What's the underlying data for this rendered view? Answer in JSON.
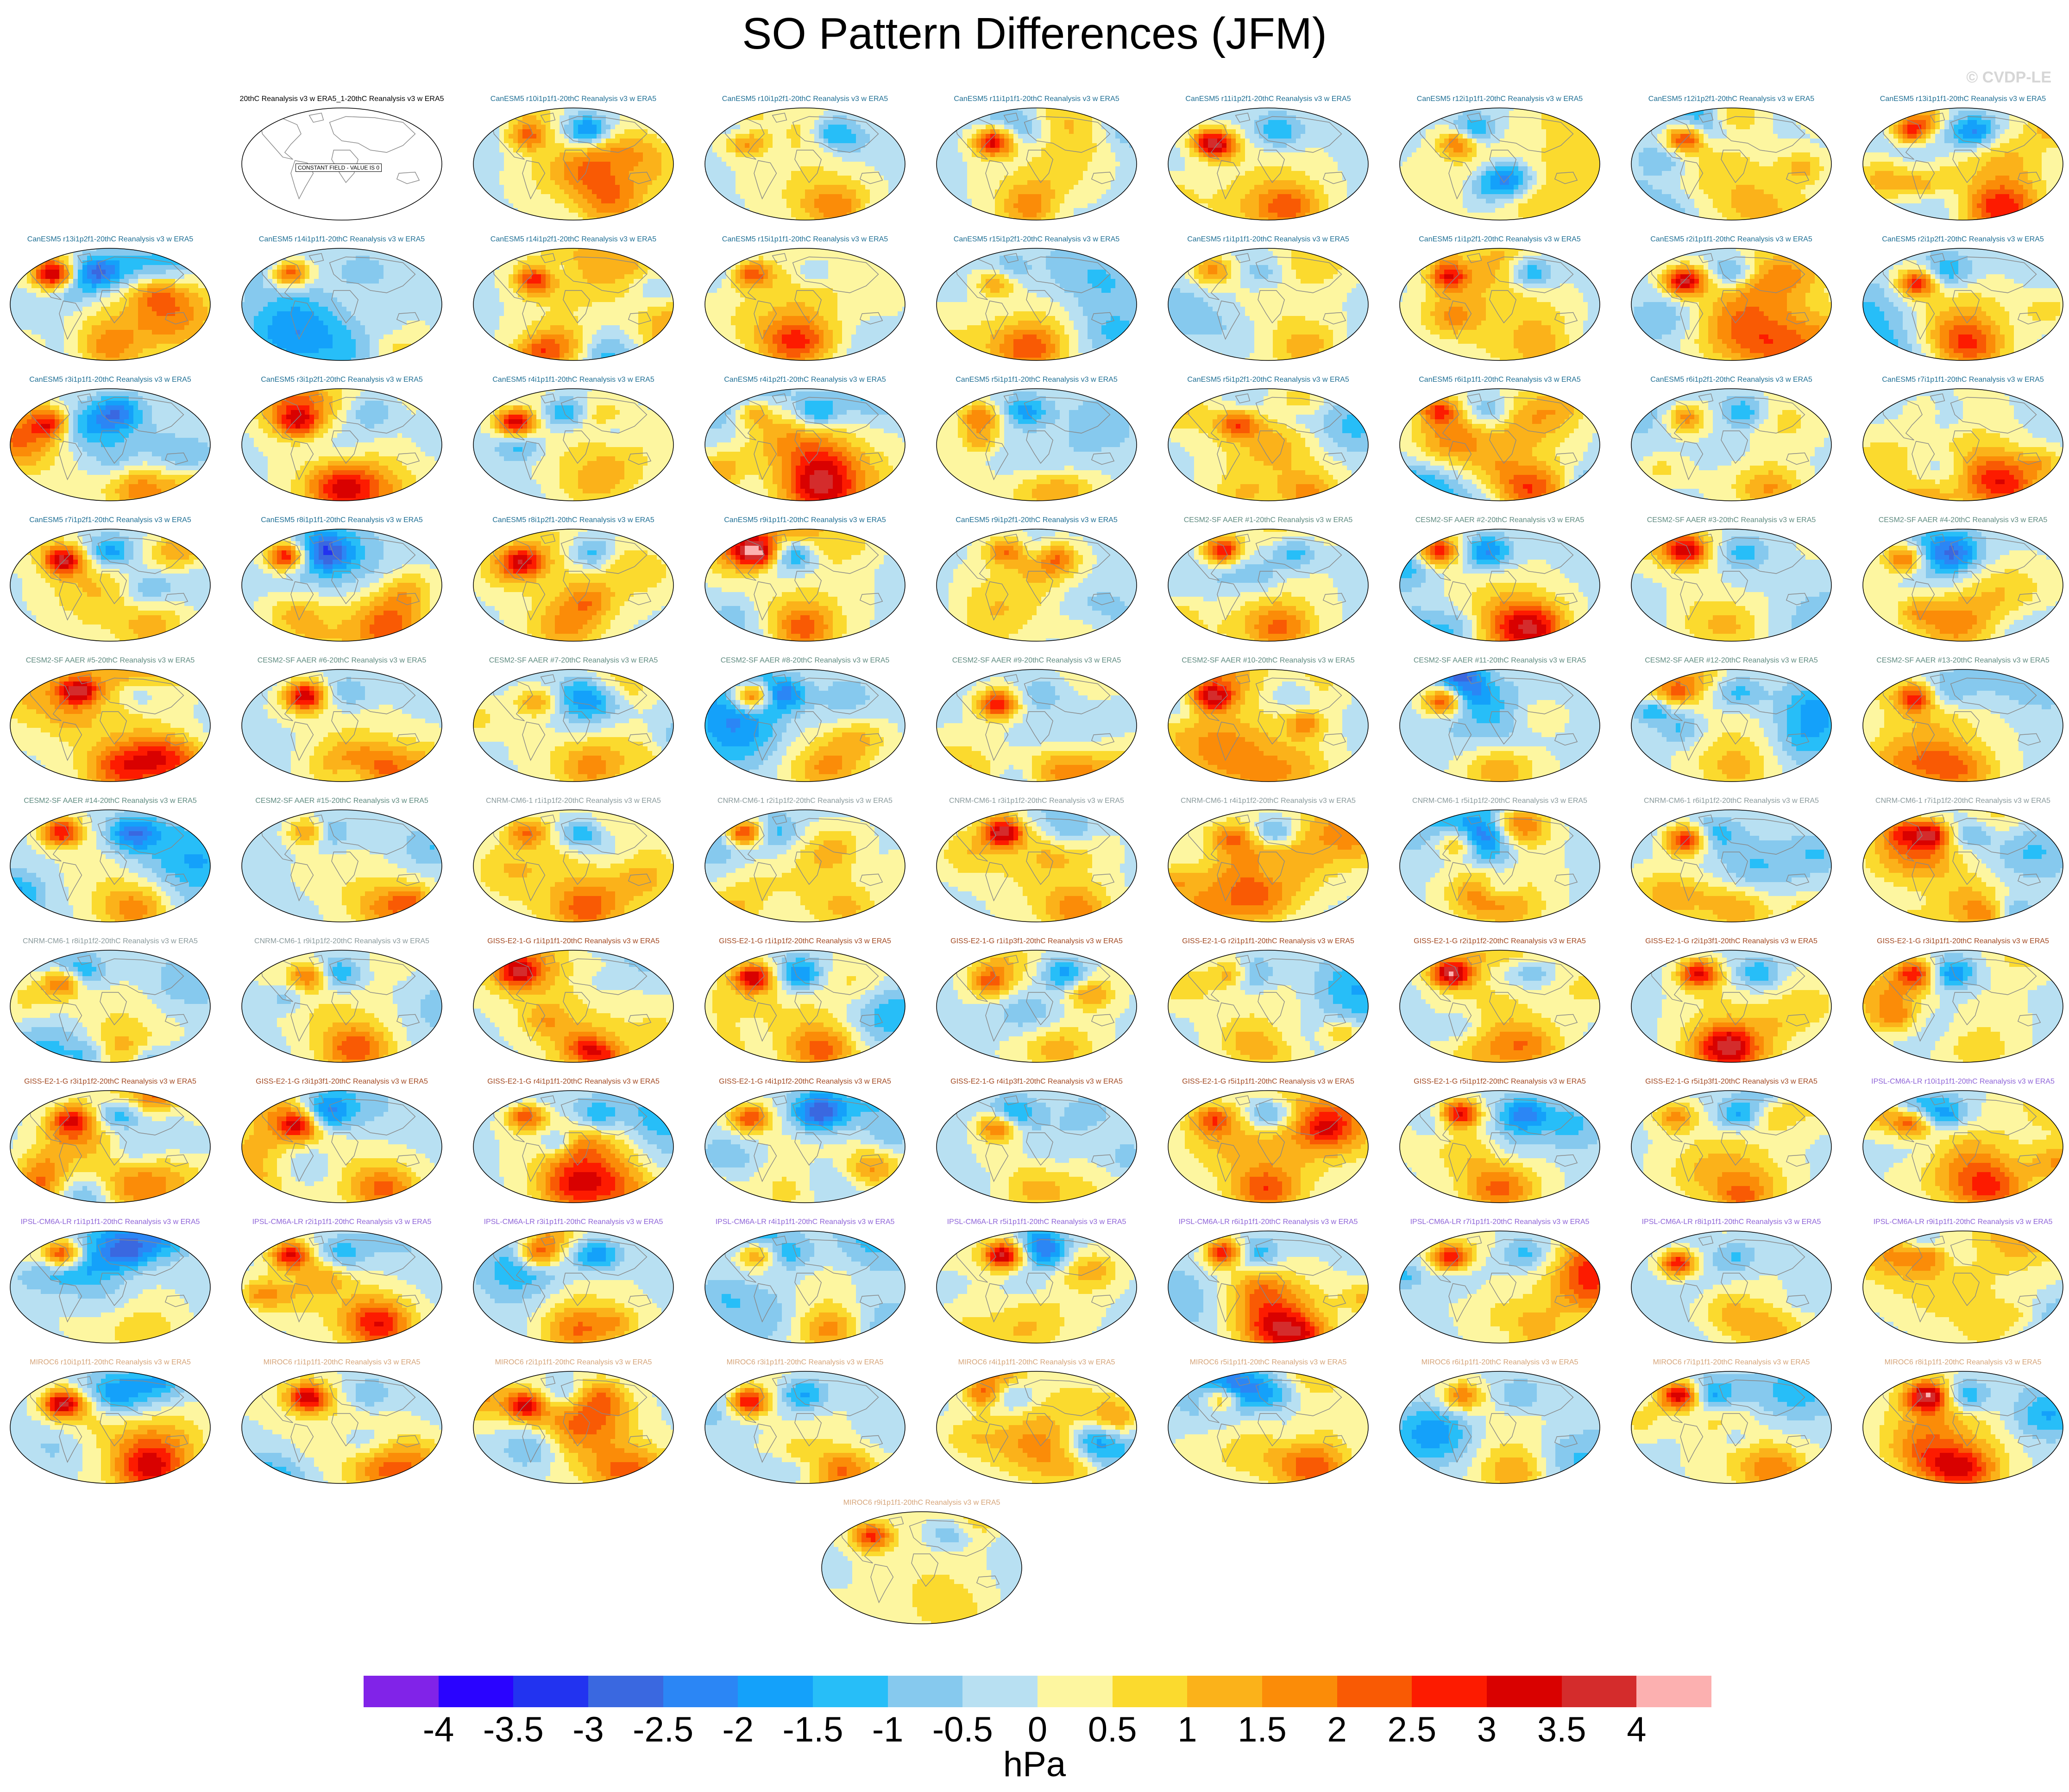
{
  "title": "SO Pattern Differences (JFM)",
  "watermark": "© CVDP-LE",
  "chart_data": {
    "type": "heatmap",
    "title": "SO Pattern Differences (JFM)",
    "map_projection": "robinson",
    "colorbar": {
      "label": "hPa",
      "levels": [
        -4,
        -3.5,
        -3,
        -2.5,
        -2,
        -1.5,
        -1,
        -0.5,
        0,
        0.5,
        1,
        1.5,
        2,
        2.5,
        3,
        3.5,
        4
      ],
      "tick_labels": [
        "-4",
        "-3.5",
        "-3",
        "-2.5",
        "-2",
        "-1.5",
        "-1",
        "-0.5",
        "0",
        "0.5",
        "1",
        "1.5",
        "2",
        "2.5",
        "3",
        "3.5",
        "4"
      ],
      "colors": [
        "#8123e8",
        "#2a03ff",
        "#2233f0",
        "#3a68e0",
        "#2b86f5",
        "#14a1fa",
        "#27bef8",
        "#86c9ee",
        "#b8e0f2",
        "#fdf6a0",
        "#fbda2e",
        "#fbb21a",
        "#fb8c08",
        "#f95a04",
        "#fd1b00",
        "#d90100",
        "#d42c2c",
        "#fcb0b0"
      ]
    },
    "reference_panel": {
      "name": "20thC Reanalysis v3 w ERA5_1-20thC Reanalysis v3 w ERA5",
      "annotation": "CONSTANT FIELD - VALUE IS 0"
    },
    "panels": [
      {
        "name": "CanESM5 r10i1p1f1-20thC Reanalysis v3 w ERA5",
        "group": "CanESM5"
      },
      {
        "name": "CanESM5 r10i1p2f1-20thC Reanalysis v3 w ERA5",
        "group": "CanESM5"
      },
      {
        "name": "CanESM5 r11i1p1f1-20thC Reanalysis v3 w ERA5",
        "group": "CanESM5"
      },
      {
        "name": "CanESM5 r11i1p2f1-20thC Reanalysis v3 w ERA5",
        "group": "CanESM5"
      },
      {
        "name": "CanESM5 r12i1p1f1-20thC Reanalysis v3 w ERA5",
        "group": "CanESM5"
      },
      {
        "name": "CanESM5 r12i1p2f1-20thC Reanalysis v3 w ERA5",
        "group": "CanESM5"
      },
      {
        "name": "CanESM5 r13i1p1f1-20thC Reanalysis v3 w ERA5",
        "group": "CanESM5"
      },
      {
        "name": "CanESM5 r13i1p2f1-20thC Reanalysis v3 w ERA5",
        "group": "CanESM5"
      },
      {
        "name": "CanESM5 r14i1p1f1-20thC Reanalysis v3 w ERA5",
        "group": "CanESM5"
      },
      {
        "name": "CanESM5 r14i1p2f1-20thC Reanalysis v3 w ERA5",
        "group": "CanESM5"
      },
      {
        "name": "CanESM5 r15i1p1f1-20thC Reanalysis v3 w ERA5",
        "group": "CanESM5"
      },
      {
        "name": "CanESM5 r15i1p2f1-20thC Reanalysis v3 w ERA5",
        "group": "CanESM5"
      },
      {
        "name": "CanESM5 r1i1p1f1-20thC Reanalysis v3 w ERA5",
        "group": "CanESM5"
      },
      {
        "name": "CanESM5 r1i1p2f1-20thC Reanalysis v3 w ERA5",
        "group": "CanESM5"
      },
      {
        "name": "CanESM5 r2i1p1f1-20thC Reanalysis v3 w ERA5",
        "group": "CanESM5"
      },
      {
        "name": "CanESM5 r2i1p2f1-20thC Reanalysis v3 w ERA5",
        "group": "CanESM5"
      },
      {
        "name": "CanESM5 r3i1p1f1-20thC Reanalysis v3 w ERA5",
        "group": "CanESM5"
      },
      {
        "name": "CanESM5 r3i1p2f1-20thC Reanalysis v3 w ERA5",
        "group": "CanESM5"
      },
      {
        "name": "CanESM5 r4i1p1f1-20thC Reanalysis v3 w ERA5",
        "group": "CanESM5"
      },
      {
        "name": "CanESM5 r4i1p2f1-20thC Reanalysis v3 w ERA5",
        "group": "CanESM5"
      },
      {
        "name": "CanESM5 r5i1p1f1-20thC Reanalysis v3 w ERA5",
        "group": "CanESM5"
      },
      {
        "name": "CanESM5 r5i1p2f1-20thC Reanalysis v3 w ERA5",
        "group": "CanESM5"
      },
      {
        "name": "CanESM5 r6i1p1f1-20thC Reanalysis v3 w ERA5",
        "group": "CanESM5"
      },
      {
        "name": "CanESM5 r6i1p2f1-20thC Reanalysis v3 w ERA5",
        "group": "CanESM5"
      },
      {
        "name": "CanESM5 r7i1p1f1-20thC Reanalysis v3 w ERA5",
        "group": "CanESM5"
      },
      {
        "name": "CanESM5 r7i1p2f1-20thC Reanalysis v3 w ERA5",
        "group": "CanESM5"
      },
      {
        "name": "CanESM5 r8i1p1f1-20thC Reanalysis v3 w ERA5",
        "group": "CanESM5"
      },
      {
        "name": "CanESM5 r8i1p2f1-20thC Reanalysis v3 w ERA5",
        "group": "CanESM5"
      },
      {
        "name": "CanESM5 r9i1p1f1-20thC Reanalysis v3 w ERA5",
        "group": "CanESM5"
      },
      {
        "name": "CanESM5 r9i1p2f1-20thC Reanalysis v3 w ERA5",
        "group": "CanESM5"
      },
      {
        "name": "CESM2-SF AAER #1-20thC Reanalysis v3 w ERA5",
        "group": "CESM2-SF AAER"
      },
      {
        "name": "CESM2-SF AAER #2-20thC Reanalysis v3 w ERA5",
        "group": "CESM2-SF AAER"
      },
      {
        "name": "CESM2-SF AAER #3-20thC Reanalysis v3 w ERA5",
        "group": "CESM2-SF AAER"
      },
      {
        "name": "CESM2-SF AAER #4-20thC Reanalysis v3 w ERA5",
        "group": "CESM2-SF AAER"
      },
      {
        "name": "CESM2-SF AAER #5-20thC Reanalysis v3 w ERA5",
        "group": "CESM2-SF AAER"
      },
      {
        "name": "CESM2-SF AAER #6-20thC Reanalysis v3 w ERA5",
        "group": "CESM2-SF AAER"
      },
      {
        "name": "CESM2-SF AAER #7-20thC Reanalysis v3 w ERA5",
        "group": "CESM2-SF AAER"
      },
      {
        "name": "CESM2-SF AAER #8-20thC Reanalysis v3 w ERA5",
        "group": "CESM2-SF AAER"
      },
      {
        "name": "CESM2-SF AAER #9-20thC Reanalysis v3 w ERA5",
        "group": "CESM2-SF AAER"
      },
      {
        "name": "CESM2-SF AAER #10-20thC Reanalysis v3 w ERA5",
        "group": "CESM2-SF AAER"
      },
      {
        "name": "CESM2-SF AAER #11-20thC Reanalysis v3 w ERA5",
        "group": "CESM2-SF AAER"
      },
      {
        "name": "CESM2-SF AAER #12-20thC Reanalysis v3 w ERA5",
        "group": "CESM2-SF AAER"
      },
      {
        "name": "CESM2-SF AAER #13-20thC Reanalysis v3 w ERA5",
        "group": "CESM2-SF AAER"
      },
      {
        "name": "CESM2-SF AAER #14-20thC Reanalysis v3 w ERA5",
        "group": "CESM2-SF AAER"
      },
      {
        "name": "CESM2-SF AAER #15-20thC Reanalysis v3 w ERA5",
        "group": "CESM2-SF AAER"
      },
      {
        "name": "CNRM-CM6-1 r1i1p1f2-20thC Reanalysis v3 w ERA5",
        "group": "CNRM-CM6-1"
      },
      {
        "name": "CNRM-CM6-1 r2i1p1f2-20thC Reanalysis v3 w ERA5",
        "group": "CNRM-CM6-1"
      },
      {
        "name": "CNRM-CM6-1 r3i1p1f2-20thC Reanalysis v3 w ERA5",
        "group": "CNRM-CM6-1"
      },
      {
        "name": "CNRM-CM6-1 r4i1p1f2-20thC Reanalysis v3 w ERA5",
        "group": "CNRM-CM6-1"
      },
      {
        "name": "CNRM-CM6-1 r5i1p1f2-20thC Reanalysis v3 w ERA5",
        "group": "CNRM-CM6-1"
      },
      {
        "name": "CNRM-CM6-1 r6i1p1f2-20thC Reanalysis v3 w ERA5",
        "group": "CNRM-CM6-1"
      },
      {
        "name": "CNRM-CM6-1 r7i1p1f2-20thC Reanalysis v3 w ERA5",
        "group": "CNRM-CM6-1"
      },
      {
        "name": "CNRM-CM6-1 r8i1p1f2-20thC Reanalysis v3 w ERA5",
        "group": "CNRM-CM6-1"
      },
      {
        "name": "CNRM-CM6-1 r9i1p1f2-20thC Reanalysis v3 w ERA5",
        "group": "CNRM-CM6-1"
      },
      {
        "name": "GISS-E2-1-G r1i1p1f1-20thC Reanalysis v3 w ERA5",
        "group": "GISS-E2-1-G"
      },
      {
        "name": "GISS-E2-1-G r1i1p1f2-20thC Reanalysis v3 w ERA5",
        "group": "GISS-E2-1-G"
      },
      {
        "name": "GISS-E2-1-G r1i1p3f1-20thC Reanalysis v3 w ERA5",
        "group": "GISS-E2-1-G"
      },
      {
        "name": "GISS-E2-1-G r2i1p1f1-20thC Reanalysis v3 w ERA5",
        "group": "GISS-E2-1-G"
      },
      {
        "name": "GISS-E2-1-G r2i1p1f2-20thC Reanalysis v3 w ERA5",
        "group": "GISS-E2-1-G"
      },
      {
        "name": "GISS-E2-1-G r2i1p3f1-20thC Reanalysis v3 w ERA5",
        "group": "GISS-E2-1-G"
      },
      {
        "name": "GISS-E2-1-G r3i1p1f1-20thC Reanalysis v3 w ERA5",
        "group": "GISS-E2-1-G"
      },
      {
        "name": "GISS-E2-1-G r3i1p1f2-20thC Reanalysis v3 w ERA5",
        "group": "GISS-E2-1-G"
      },
      {
        "name": "GISS-E2-1-G r3i1p3f1-20thC Reanalysis v3 w ERA5",
        "group": "GISS-E2-1-G"
      },
      {
        "name": "GISS-E2-1-G r4i1p1f1-20thC Reanalysis v3 w ERA5",
        "group": "GISS-E2-1-G"
      },
      {
        "name": "GISS-E2-1-G r4i1p1f2-20thC Reanalysis v3 w ERA5",
        "group": "GISS-E2-1-G"
      },
      {
        "name": "GISS-E2-1-G r4i1p3f1-20thC Reanalysis v3 w ERA5",
        "group": "GISS-E2-1-G"
      },
      {
        "name": "GISS-E2-1-G r5i1p1f1-20thC Reanalysis v3 w ERA5",
        "group": "GISS-E2-1-G"
      },
      {
        "name": "GISS-E2-1-G r5i1p1f2-20thC Reanalysis v3 w ERA5",
        "group": "GISS-E2-1-G"
      },
      {
        "name": "GISS-E2-1-G r5i1p3f1-20thC Reanalysis v3 w ERA5",
        "group": "GISS-E2-1-G"
      },
      {
        "name": "IPSL-CM6A-LR r10i1p1f1-20thC Reanalysis v3 w ERA5",
        "group": "IPSL-CM6A-LR"
      },
      {
        "name": "IPSL-CM6A-LR r1i1p1f1-20thC Reanalysis v3 w ERA5",
        "group": "IPSL-CM6A-LR"
      },
      {
        "name": "IPSL-CM6A-LR r2i1p1f1-20thC Reanalysis v3 w ERA5",
        "group": "IPSL-CM6A-LR"
      },
      {
        "name": "IPSL-CM6A-LR r3i1p1f1-20thC Reanalysis v3 w ERA5",
        "group": "IPSL-CM6A-LR"
      },
      {
        "name": "IPSL-CM6A-LR r4i1p1f1-20thC Reanalysis v3 w ERA5",
        "group": "IPSL-CM6A-LR"
      },
      {
        "name": "IPSL-CM6A-LR r5i1p1f1-20thC Reanalysis v3 w ERA5",
        "group": "IPSL-CM6A-LR"
      },
      {
        "name": "IPSL-CM6A-LR r6i1p1f1-20thC Reanalysis v3 w ERA5",
        "group": "IPSL-CM6A-LR"
      },
      {
        "name": "IPSL-CM6A-LR r7i1p1f1-20thC Reanalysis v3 w ERA5",
        "group": "IPSL-CM6A-LR"
      },
      {
        "name": "IPSL-CM6A-LR r8i1p1f1-20thC Reanalysis v3 w ERA5",
        "group": "IPSL-CM6A-LR"
      },
      {
        "name": "IPSL-CM6A-LR r9i1p1f1-20thC Reanalysis v3 w ERA5",
        "group": "IPSL-CM6A-LR"
      },
      {
        "name": "MIROC6 r10i1p1f1-20thC Reanalysis v3 w ERA5",
        "group": "MIROC6"
      },
      {
        "name": "MIROC6 r1i1p1f1-20thC Reanalysis v3 w ERA5",
        "group": "MIROC6"
      },
      {
        "name": "MIROC6 r2i1p1f1-20thC Reanalysis v3 w ERA5",
        "group": "MIROC6"
      },
      {
        "name": "MIROC6 r3i1p1f1-20thC Reanalysis v3 w ERA5",
        "group": "MIROC6"
      },
      {
        "name": "MIROC6 r4i1p1f1-20thC Reanalysis v3 w ERA5",
        "group": "MIROC6"
      },
      {
        "name": "MIROC6 r5i1p1f1-20thC Reanalysis v3 w ERA5",
        "group": "MIROC6"
      },
      {
        "name": "MIROC6 r6i1p1f1-20thC Reanalysis v3 w ERA5",
        "group": "MIROC6"
      },
      {
        "name": "MIROC6 r7i1p1f1-20thC Reanalysis v3 w ERA5",
        "group": "MIROC6"
      },
      {
        "name": "MIROC6 r8i1p1f1-20thC Reanalysis v3 w ERA5",
        "group": "MIROC6"
      },
      {
        "name": "MIROC6 r9i1p1f1-20thC Reanalysis v3 w ERA5",
        "group": "MIROC6"
      }
    ],
    "group_colors": {
      "reference": "#000000",
      "CanESM5": "#1f6f94",
      "CESM2-SF AAER": "#5f8b80",
      "CNRM-CM6-1": "#8a9a9c",
      "GISS-E2-1-G": "#a34a23",
      "IPSL-CM6A-LR": "#8f64d8",
      "MIROC6": "#d6a57a"
    },
    "land_color": "#888888",
    "map_border_color": "#000000"
  }
}
